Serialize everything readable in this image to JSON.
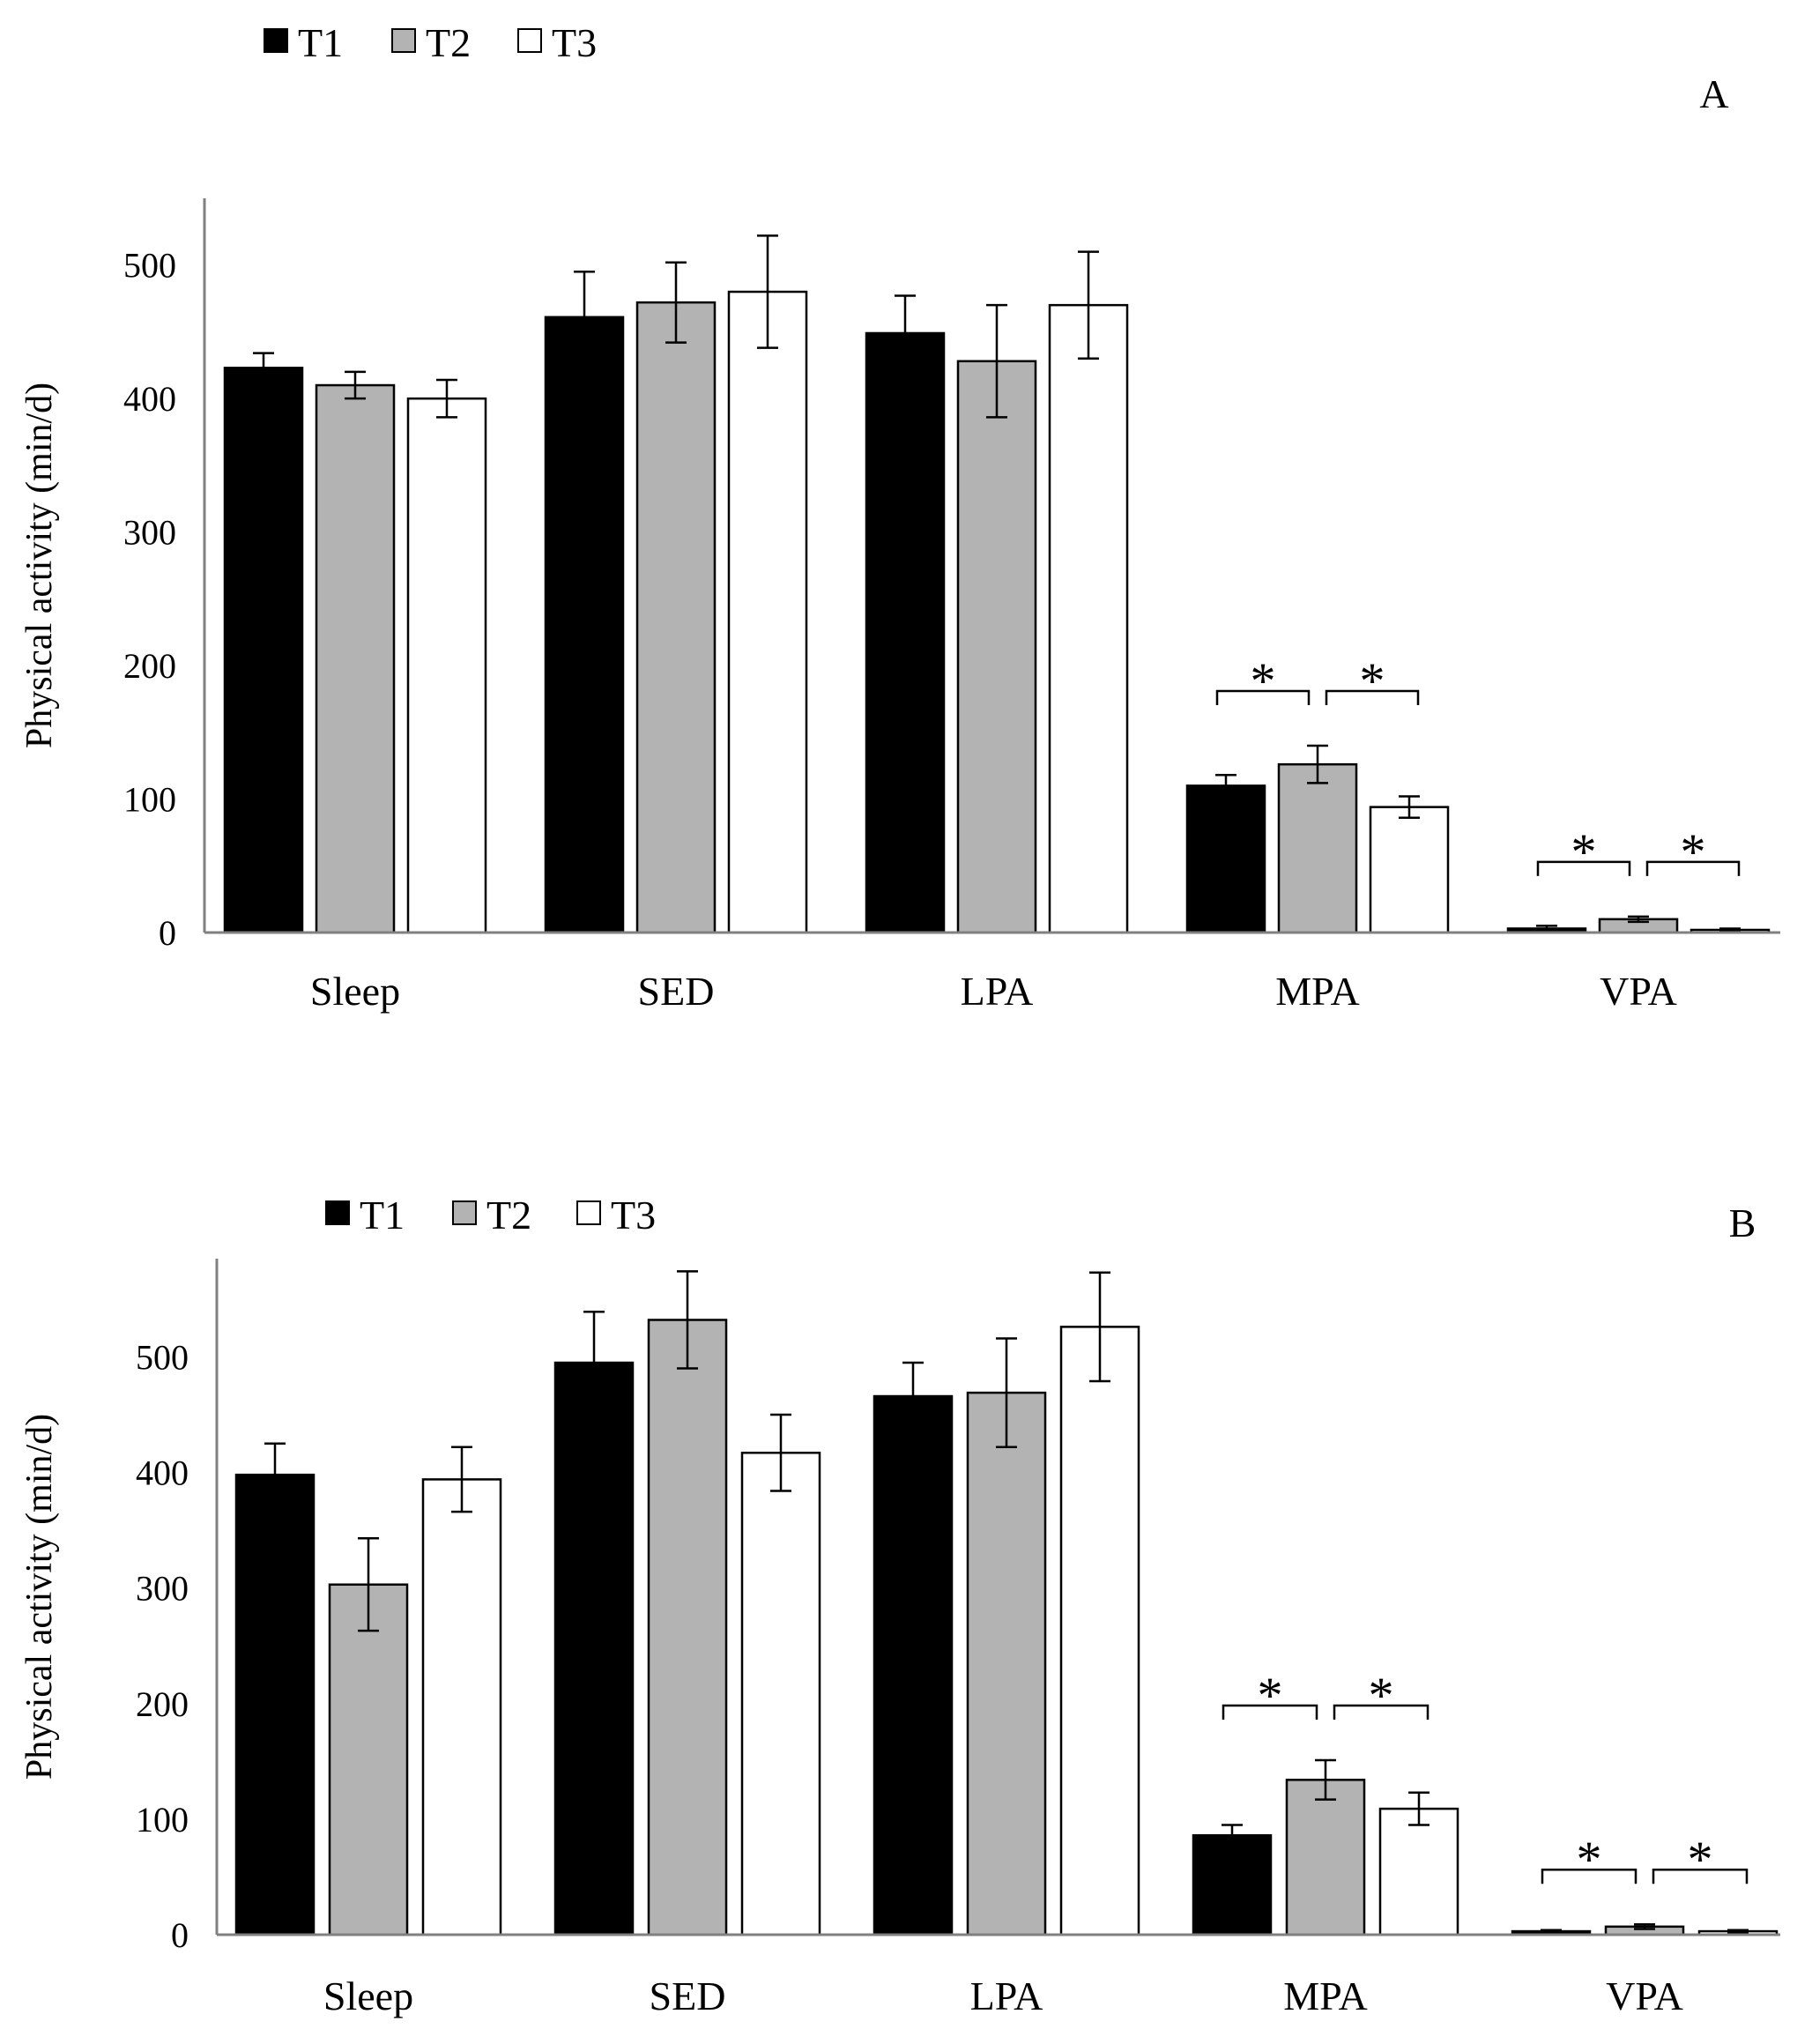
{
  "chart_data": [
    {
      "type": "bar",
      "panel_label": "A",
      "categories": [
        "Sleep",
        "SED",
        "LPA",
        "MPA",
        "VPA"
      ],
      "series": [
        {
          "name": "T1",
          "color": "#000000",
          "values": [
            423,
            461,
            449,
            110,
            3
          ],
          "errors": [
            11,
            34,
            28,
            8,
            2
          ]
        },
        {
          "name": "T2",
          "color": "#b3b3b3",
          "values": [
            410,
            472,
            428,
            126,
            10
          ],
          "errors": [
            10,
            30,
            42,
            14,
            2
          ]
        },
        {
          "name": "T3",
          "color": "#ffffff",
          "values": [
            400,
            480,
            470,
            94,
            2
          ],
          "errors": [
            14,
            42,
            40,
            8,
            1
          ]
        }
      ],
      "xlabel": "",
      "ylabel": "Physical activity (min/d)",
      "ylim": [
        0,
        550
      ],
      "yticks": [
        "0",
        "100",
        "200",
        "300",
        "400",
        "500"
      ],
      "significance": [
        {
          "category": "MPA",
          "from": "T1",
          "to": "T2",
          "mark": "*"
        },
        {
          "category": "MPA",
          "from": "T2",
          "to": "T3",
          "mark": "*"
        },
        {
          "category": "VPA",
          "from": "T1",
          "to": "T2",
          "mark": "*"
        },
        {
          "category": "VPA",
          "from": "T2",
          "to": "T3",
          "mark": "*"
        }
      ]
    },
    {
      "type": "bar",
      "panel_label": "B",
      "categories": [
        "Sleep",
        "SED",
        "LPA",
        "MPA",
        "VPA"
      ],
      "series": [
        {
          "name": "T1",
          "color": "#000000",
          "values": [
            398,
            495,
            466,
            86,
            3
          ],
          "errors": [
            27,
            44,
            29,
            9,
            1
          ]
        },
        {
          "name": "T2",
          "color": "#b3b3b3",
          "values": [
            303,
            532,
            469,
            134,
            7
          ],
          "errors": [
            40,
            42,
            47,
            17,
            2
          ]
        },
        {
          "name": "T3",
          "color": "#ffffff",
          "values": [
            394,
            417,
            526,
            109,
            3
          ],
          "errors": [
            28,
            33,
            47,
            14,
            1
          ]
        }
      ],
      "xlabel": "",
      "ylabel": "Physical activity (min/d)",
      "ylim": [
        0,
        585
      ],
      "yticks": [
        "0",
        "100",
        "200",
        "300",
        "400",
        "500"
      ],
      "significance": [
        {
          "category": "MPA",
          "from": "T1",
          "to": "T2",
          "mark": "*"
        },
        {
          "category": "MPA",
          "from": "T2",
          "to": "T3",
          "mark": "*"
        },
        {
          "category": "VPA",
          "from": "T1",
          "to": "T2",
          "mark": "*"
        },
        {
          "category": "VPA",
          "from": "T2",
          "to": "T3",
          "mark": "*"
        }
      ]
    }
  ]
}
